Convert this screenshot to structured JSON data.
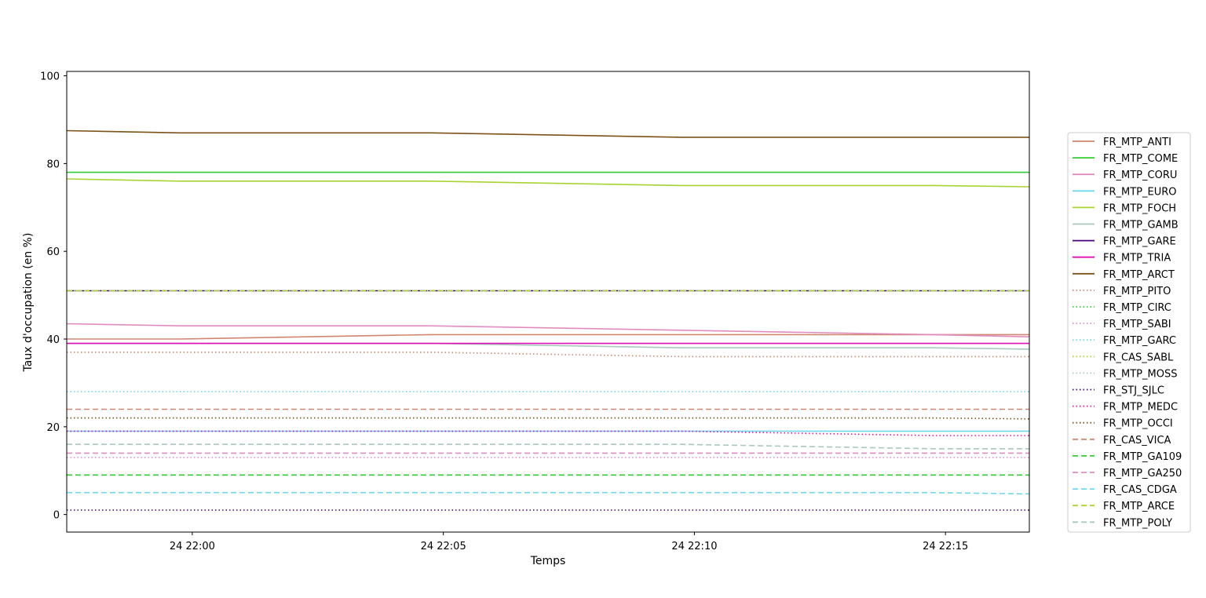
{
  "chart_data": {
    "type": "line",
    "title": "",
    "xlabel": "Temps",
    "ylabel": "Taux d'occupation (en %)",
    "xlim": [
      "24 21:57:30",
      "24 22:16:40"
    ],
    "ylim": [
      -4,
      101
    ],
    "grid": false,
    "legend_position": "right",
    "x_ticks": [
      "24 22:00",
      "24 22:05",
      "24 22:10",
      "24 22:15"
    ],
    "x_tick_minutes": [
      0,
      5,
      10,
      15
    ],
    "y_ticks": [
      "0",
      "20",
      "40",
      "60",
      "80",
      "100"
    ],
    "y_tick_values": [
      0,
      20,
      40,
      60,
      80,
      100
    ],
    "x": [
      "24 21:57:30",
      "24 21:59:45",
      "24 22:04:45",
      "24 22:09:45",
      "24 22:14:45",
      "24 22:16:40"
    ],
    "x_minutes": [
      -2.5,
      -0.25,
      4.75,
      9.75,
      14.75,
      16.67
    ],
    "series": [
      {
        "name": "FR_MTP_ANTI",
        "color": "#d08770",
        "style": "solid",
        "values": [
          40,
          40,
          41,
          41,
          41,
          41
        ]
      },
      {
        "name": "FR_MTP_COME",
        "color": "#32cd32",
        "style": "solid",
        "values": [
          78,
          78,
          78,
          78,
          78,
          78
        ]
      },
      {
        "name": "FR_MTP_CORU",
        "color": "#e08cc0",
        "style": "solid",
        "values": [
          43.5,
          43,
          43,
          42,
          41,
          40.5
        ]
      },
      {
        "name": "FR_MTP_EURO",
        "color": "#70d8ee",
        "style": "solid",
        "values": [
          19,
          19,
          19,
          19,
          19,
          19
        ]
      },
      {
        "name": "FR_MTP_FOCH",
        "color": "#a8d432",
        "style": "solid",
        "values": [
          76.5,
          76,
          76,
          75,
          75,
          74.7
        ]
      },
      {
        "name": "FR_MTP_GAMB",
        "color": "#a8c8c0",
        "style": "solid",
        "values": [
          39,
          39,
          39,
          38,
          38,
          37.7
        ]
      },
      {
        "name": "FR_MTP_GARE",
        "color": "#4b0082",
        "style": "solid",
        "values": [
          51,
          51,
          51,
          51,
          51,
          51
        ]
      },
      {
        "name": "FR_MTP_TRIA",
        "color": "#e010b8",
        "style": "solid",
        "values": [
          39,
          39,
          39,
          39,
          39,
          39
        ]
      },
      {
        "name": "FR_MTP_ARCT",
        "color": "#7b5218",
        "style": "solid",
        "values": [
          87.5,
          87,
          87,
          86,
          86,
          86
        ]
      },
      {
        "name": "FR_MTP_PITO",
        "color": "#d08770",
        "style": "dotted",
        "values": [
          37,
          37,
          37,
          36,
          36,
          36
        ]
      },
      {
        "name": "FR_MTP_CIRC",
        "color": "#32cd32",
        "style": "dotted",
        "values": [
          51,
          51,
          51,
          51,
          51,
          51
        ]
      },
      {
        "name": "FR_MTP_SABI",
        "color": "#e08cc0",
        "style": "dotted",
        "values": [
          13,
          13,
          13,
          13,
          13,
          13
        ]
      },
      {
        "name": "FR_MTP_GARC",
        "color": "#70d8ee",
        "style": "dotted",
        "values": [
          28,
          28,
          28,
          28,
          28,
          28
        ]
      },
      {
        "name": "FR_CAS_SABL",
        "color": "#a8d432",
        "style": "dotted",
        "values": [
          51,
          51,
          51,
          51,
          51,
          51
        ]
      },
      {
        "name": "FR_MTP_MOSS",
        "color": "#a8c8c0",
        "style": "dotted",
        "values": [
          51,
          51,
          51,
          51,
          51,
          51
        ]
      },
      {
        "name": "FR_STJ_SJLC",
        "color": "#4b0082",
        "style": "dotted",
        "values": [
          1,
          1,
          1,
          1,
          1,
          1
        ]
      },
      {
        "name": "FR_MTP_MEDC",
        "color": "#e010b8",
        "style": "dotted",
        "values": [
          19,
          19,
          19,
          19,
          18,
          18
        ]
      },
      {
        "name": "FR_MTP_OCCI",
        "color": "#7b5218",
        "style": "dotted",
        "values": [
          22,
          22,
          22,
          22,
          22,
          21.8
        ]
      },
      {
        "name": "FR_CAS_VICA",
        "color": "#d08770",
        "style": "dashed",
        "values": [
          24,
          24,
          24,
          24,
          24,
          24
        ]
      },
      {
        "name": "FR_MTP_GA109",
        "color": "#32cd32",
        "style": "dashed",
        "values": [
          9,
          9,
          9,
          9,
          9,
          9
        ]
      },
      {
        "name": "FR_MTP_GA250",
        "color": "#e08cc0",
        "style": "dashed",
        "values": [
          14,
          14,
          14,
          14,
          14,
          14
        ]
      },
      {
        "name": "FR_CAS_CDGA",
        "color": "#70d8ee",
        "style": "dashed",
        "values": [
          5,
          5,
          5,
          5,
          5,
          4.7
        ]
      },
      {
        "name": "FR_MTP_ARCE",
        "color": "#a8d432",
        "style": "dashed",
        "values": [
          51,
          51,
          51,
          51,
          51,
          51
        ]
      },
      {
        "name": "FR_MTP_POLY",
        "color": "#a8c8c0",
        "style": "dashed",
        "values": [
          16,
          16,
          16,
          16,
          15,
          15
        ]
      }
    ]
  }
}
